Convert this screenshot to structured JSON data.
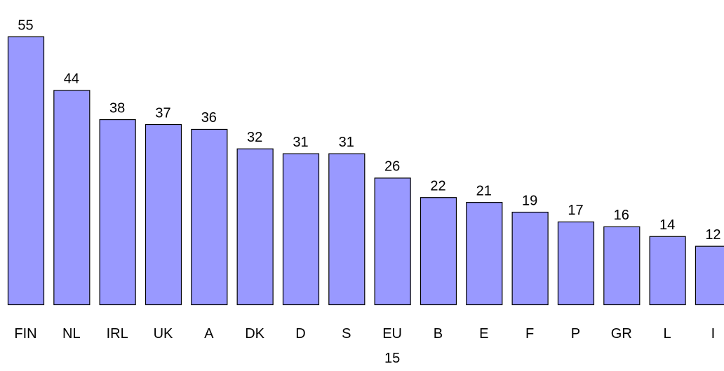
{
  "chart_data": {
    "type": "bar",
    "categories": [
      "FIN",
      "NL",
      "IRL",
      "UK",
      "A",
      "DK",
      "D",
      "S",
      "EU 15",
      "B",
      "E",
      "F",
      "P",
      "GR",
      "L",
      "I"
    ],
    "values": [
      55,
      44,
      38,
      37,
      36,
      32,
      31,
      31,
      26,
      22,
      21,
      19,
      17,
      16,
      14,
      12
    ],
    "color": "#9999ff",
    "ylim": [
      0,
      55
    ]
  }
}
